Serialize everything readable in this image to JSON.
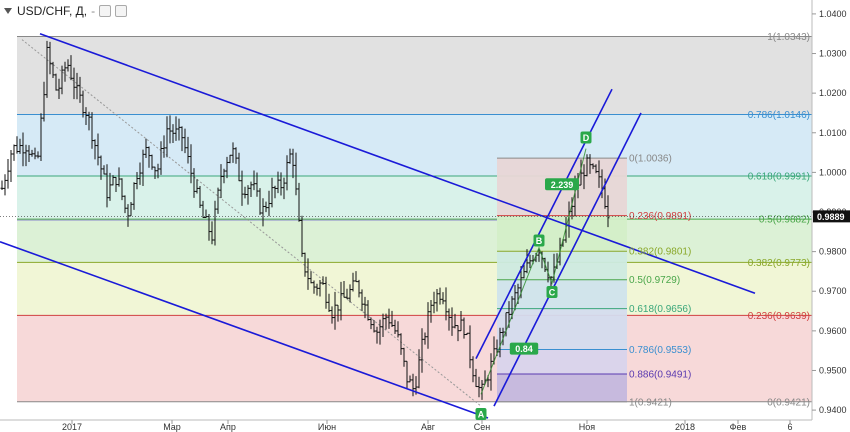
{
  "header": {
    "symbol": "USD/CHF, Д,",
    "dash": "-"
  },
  "colors": {
    "channel": "#1a1ad8",
    "bars": "#111111",
    "retracement_box": "#7a5aa8"
  },
  "chart_data": {
    "type": "ohlc",
    "ylim": [
      0.9375,
      1.0425
    ],
    "y_ticks": [
      "1.0400",
      "1.0300",
      "1.0200",
      "1.0100",
      "1.0000",
      "0.9900",
      "0.9800",
      "0.9700",
      "0.9600",
      "0.9500",
      "0.9400"
    ],
    "x_ticks": [
      "2017",
      "Мар",
      "Апр",
      "Июн",
      "Авг",
      "Сен",
      "Ноя",
      "2018",
      "Фев",
      "6"
    ],
    "current_price": "0.9889",
    "big_fib_levels": [
      {
        "ratio": "1",
        "price": 1.0343,
        "label": "1(1.0343)",
        "color": "#888888",
        "fill": "#dcdcdc"
      },
      {
        "ratio": "0.786",
        "price": 1.0146,
        "label": "0.786(1.0146)",
        "color": "#3a8fd0",
        "fill": "#cfe6f5"
      },
      {
        "ratio": "0.618",
        "price": 0.9991,
        "label": "0.618(0.9991)",
        "color": "#3aa77a",
        "fill": "#d2f0e6"
      },
      {
        "ratio": "0.5",
        "price": 0.9882,
        "label": "0.5(0.9882)",
        "color": "#4aa64a",
        "fill": "#d6efcf"
      },
      {
        "ratio": "0.382",
        "price": 0.9773,
        "label": "0.382(0.9773)",
        "color": "#8aa82a",
        "fill": "#eef5cf"
      },
      {
        "ratio": "0.236",
        "price": 0.9639,
        "label": "0.236(0.9639)",
        "color": "#d04040",
        "fill": "#f6d2d2"
      },
      {
        "ratio": "0",
        "price": 0.9421,
        "label": "0(0.9421)",
        "color": "#888888",
        "fill": "#ffffff"
      }
    ],
    "small_fib_levels": [
      {
        "price": 1.0036,
        "label": "0(1.0036)",
        "color": "#888888",
        "fill": "#e8d6d6"
      },
      {
        "price": 0.9891,
        "label": "0.236(0.9891)",
        "color": "#d04040",
        "fill": "#d3eec8"
      },
      {
        "price": 0.9801,
        "label": "0.382(0.9801)",
        "color": "#8aa82a",
        "fill": "#cdeae0"
      },
      {
        "price": 0.9729,
        "label": "0.5(0.9729)",
        "color": "#4aa64a",
        "fill": "#cfe3ec"
      },
      {
        "price": 0.9656,
        "label": "0.618(0.9656)",
        "color": "#3aa77a",
        "fill": "#d4dcee"
      },
      {
        "price": 0.9553,
        "label": "0.786(0.9553)",
        "color": "#3a8fd0",
        "fill": "#d8d4ec"
      },
      {
        "price": 0.9491,
        "label": "0.886(0.9491)",
        "color": "#5a3ab0",
        "fill": "#c4b8de"
      },
      {
        "price": 0.9421,
        "label": "1(0.9421)",
        "color": "#888888",
        "fill": null
      }
    ],
    "points": [
      {
        "label": "A",
        "bar": 479,
        "price": 0.939
      },
      {
        "label": "B",
        "bar": 537,
        "price": 0.9828
      },
      {
        "label": "C",
        "bar": 550,
        "price": 0.9698
      },
      {
        "label": "D",
        "bar": 584,
        "price": 1.0088
      }
    ],
    "pattern_ratios": [
      {
        "label": "0.84",
        "bar": 522,
        "price": 0.9555
      },
      {
        "label": "2.239",
        "bar": 560,
        "price": 0.997
      }
    ],
    "ohlc_anchors": [
      [
        0,
        0.996
      ],
      [
        10,
        1.006
      ],
      [
        25,
        1.007
      ],
      [
        35,
        1.001
      ],
      [
        45,
        1.03
      ],
      [
        55,
        1.02
      ],
      [
        65,
        1.028
      ],
      [
        75,
        1.02
      ],
      [
        85,
        1.015
      ],
      [
        95,
        1.005
      ],
      [
        105,
        0.995
      ],
      [
        115,
        0.999
      ],
      [
        125,
        0.989
      ],
      [
        135,
        1.0
      ],
      [
        145,
        1.006
      ],
      [
        155,
        1.0
      ],
      [
        165,
        1.011
      ],
      [
        180,
        1.009
      ],
      [
        190,
        0.999
      ],
      [
        200,
        0.989
      ],
      [
        210,
        0.984
      ],
      [
        220,
        1.001
      ],
      [
        230,
        1.006
      ],
      [
        240,
        0.996
      ],
      [
        250,
        0.997
      ],
      [
        260,
        0.99
      ],
      [
        270,
        0.995
      ],
      [
        280,
        0.997
      ],
      [
        290,
        1.006
      ],
      [
        300,
        0.978
      ],
      [
        310,
        0.971
      ],
      [
        320,
        0.972
      ],
      [
        330,
        0.965
      ],
      [
        345,
        0.969
      ],
      [
        355,
        0.972
      ],
      [
        365,
        0.965
      ],
      [
        375,
        0.96
      ],
      [
        385,
        0.964
      ],
      [
        395,
        0.959
      ],
      [
        405,
        0.948
      ],
      [
        412,
        0.945
      ],
      [
        420,
        0.956
      ],
      [
        430,
        0.968
      ],
      [
        440,
        0.97
      ],
      [
        450,
        0.962
      ],
      [
        462,
        0.961
      ],
      [
        472,
        0.949
      ],
      [
        479,
        0.944
      ],
      [
        490,
        0.952
      ],
      [
        500,
        0.96
      ],
      [
        510,
        0.967
      ],
      [
        520,
        0.973
      ],
      [
        530,
        0.979
      ],
      [
        537,
        0.981
      ],
      [
        544,
        0.976
      ],
      [
        550,
        0.973
      ],
      [
        558,
        0.98
      ],
      [
        566,
        0.988
      ],
      [
        574,
        0.996
      ],
      [
        584,
        1.002
      ],
      [
        594,
        0.999
      ],
      [
        600,
        0.996
      ],
      [
        606,
        0.99
      ]
    ]
  }
}
